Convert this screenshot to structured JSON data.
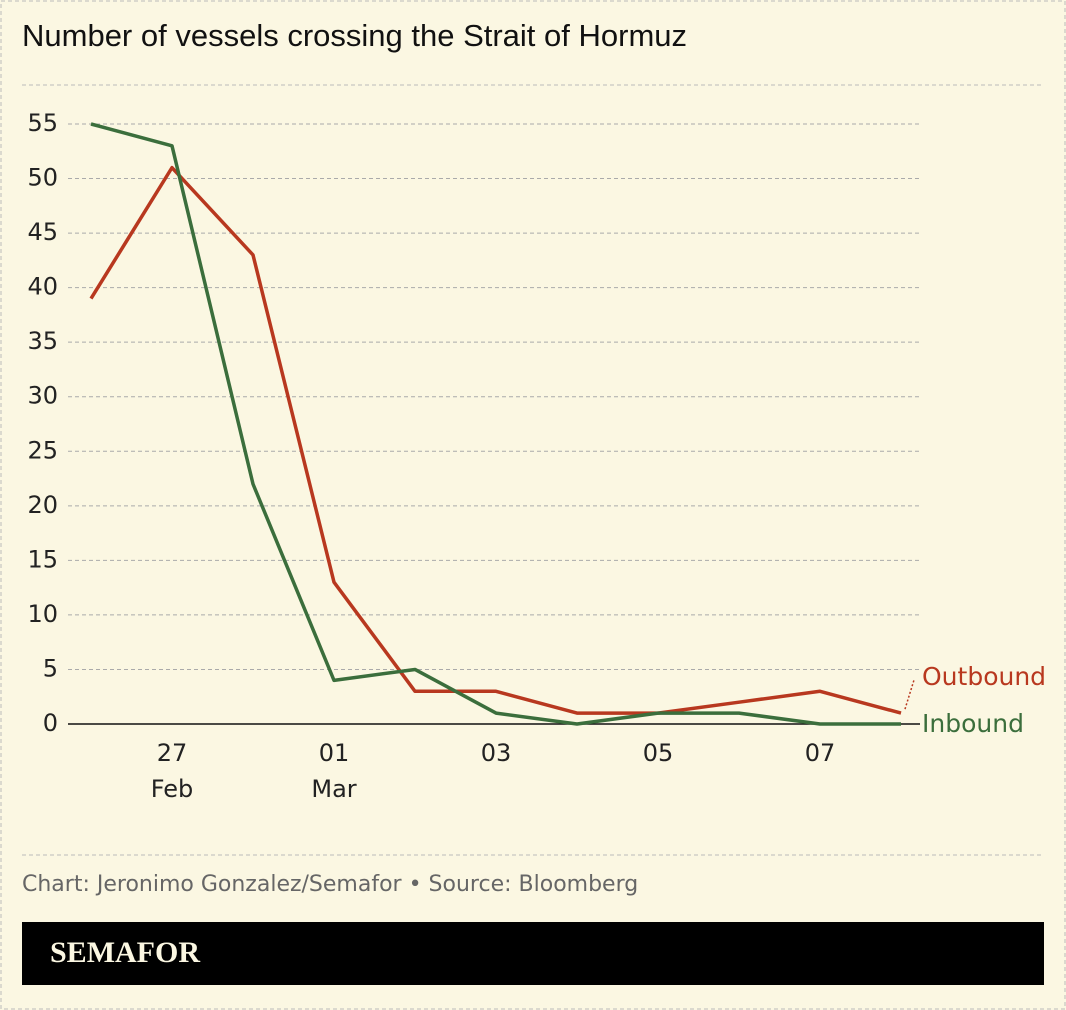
{
  "chart_data": {
    "type": "line",
    "title": "Number of vessels crossing the Strait of Hormuz",
    "categories": [
      null,
      "27",
      null,
      "01",
      null,
      "03",
      null,
      "05",
      null,
      "07",
      null
    ],
    "category_months": [
      null,
      "Feb",
      null,
      "Mar",
      null,
      null,
      null,
      null,
      null,
      null,
      null
    ],
    "series": [
      {
        "name": "Outbound",
        "color": "#b8381f",
        "values": [
          39,
          51,
          43,
          13,
          3,
          3,
          1,
          1,
          2,
          3,
          1
        ]
      },
      {
        "name": "Inbound",
        "color": "#3b6e3c",
        "values": [
          55,
          53,
          22,
          4,
          5,
          1,
          0,
          1,
          1,
          0,
          0
        ]
      }
    ],
    "ylim": [
      0,
      55
    ],
    "yticks": [
      0,
      5,
      10,
      15,
      20,
      25,
      30,
      35,
      40,
      45,
      50,
      55
    ],
    "grid": true
  },
  "footer": {
    "credit": "Chart: Jeronimo Gonzalez/Semafor • Source: Bloomberg",
    "brand": "SEMAFOR"
  }
}
